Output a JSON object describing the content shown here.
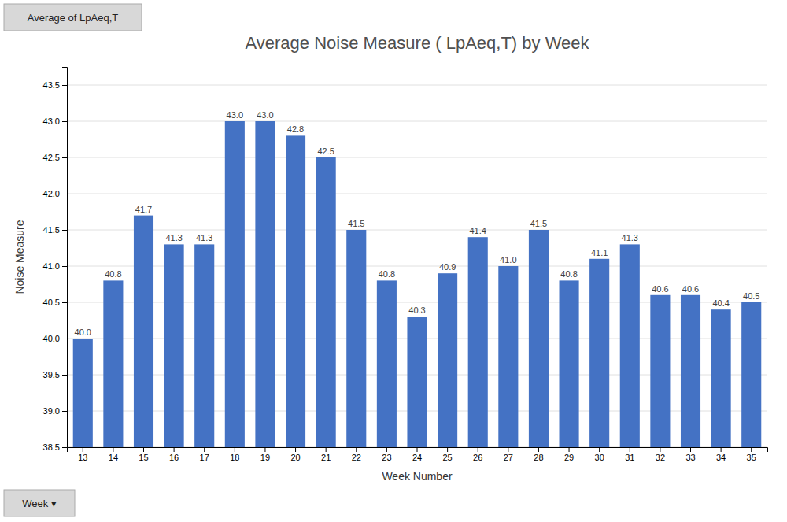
{
  "chart_data": {
    "type": "bar",
    "title": "Average Noise Measure ( LpAeq,T) by Week",
    "x_label": "Week Number",
    "y_label": "Noise Measure",
    "categories": [
      "13",
      "14",
      "15",
      "16",
      "17",
      "18",
      "19",
      "20",
      "21",
      "22",
      "23",
      "24",
      "25",
      "26",
      "27",
      "28",
      "29",
      "30",
      "31",
      "32",
      "33",
      "34",
      "35"
    ],
    "values": [
      40.0,
      40.8,
      41.7,
      41.3,
      41.3,
      43.0,
      43.0,
      42.8,
      42.5,
      41.5,
      40.8,
      40.3,
      40.9,
      41.4,
      41.0,
      41.5,
      40.8,
      41.1,
      41.3,
      40.6,
      40.6,
      40.4,
      40.5
    ],
    "value_labels": [
      "40.0",
      "40.8",
      "41.7",
      "41.3",
      "41.3",
      "43.0",
      "43.0",
      "42.8",
      "42.5",
      "41.5",
      "40.8",
      "40.3",
      "40.9",
      "41.4",
      "41.0",
      "41.5",
      "40.8",
      "41.1",
      "41.3",
      "40.6",
      "40.6",
      "40.4",
      "40.5"
    ],
    "data_labels": true,
    "color": "#4472C4",
    "ylim": [
      38.5,
      43.75
    ],
    "yticks": [
      38.5,
      {
        "value": 39.0,
        "label": "39.0"
      },
      39.5,
      {
        "value": 40.0,
        "label": "40.0"
      },
      40.5,
      {
        "value": 41.0,
        "label": "41.0"
      },
      41.5,
      {
        "value": 42.0,
        "label": "42.0"
      },
      42.5,
      {
        "value": 43.0,
        "label": "43.0"
      },
      43.5
    ],
    "grid": true,
    "annotations": [
      "Average of LpAeq,T",
      "Week ▾"
    ]
  }
}
